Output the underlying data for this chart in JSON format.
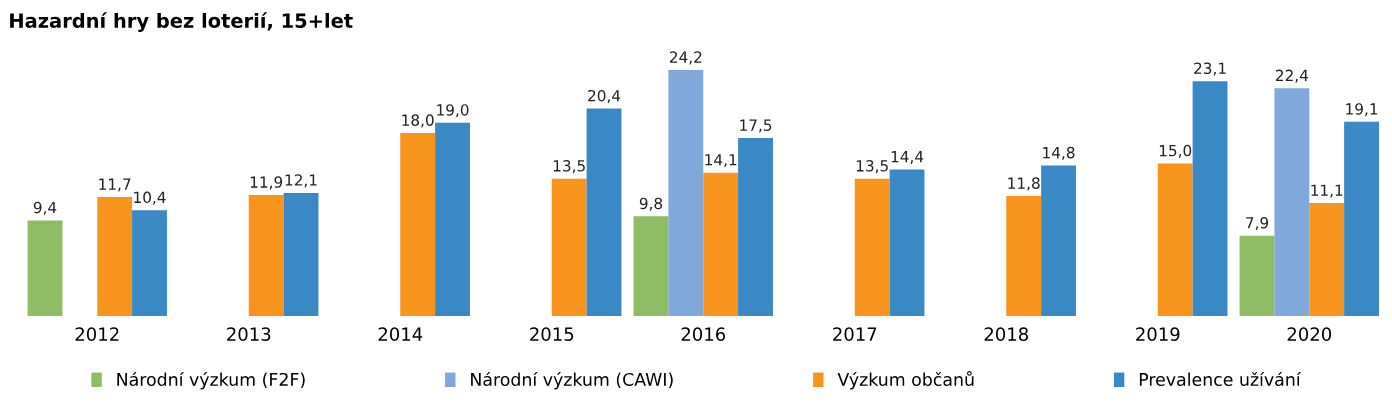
{
  "chart_data": {
    "type": "bar",
    "title": "Hazardní hry bez loterií, 15+let",
    "categories": [
      "2012",
      "2013",
      "2014",
      "2015",
      "2016",
      "2017",
      "2018",
      "2019",
      "2020"
    ],
    "series": [
      {
        "name": "Národní výzkum (F2F)",
        "color": "#8fbd66",
        "values": [
          9.4,
          null,
          null,
          null,
          9.8,
          null,
          null,
          null,
          7.9
        ],
        "value_labels": [
          "9,4",
          null,
          null,
          null,
          "9,8",
          null,
          null,
          null,
          "7,9"
        ]
      },
      {
        "name": "Národní výzkum (CAWI)",
        "color": "#80a8da",
        "values": [
          null,
          null,
          null,
          null,
          24.2,
          null,
          null,
          null,
          22.4
        ],
        "value_labels": [
          null,
          null,
          null,
          null,
          "24,2",
          null,
          null,
          null,
          "22,4"
        ]
      },
      {
        "name": "Výzkum občanů",
        "color": "#f7941e",
        "values": [
          11.7,
          11.9,
          18.0,
          13.5,
          14.1,
          13.5,
          11.8,
          15.0,
          11.1
        ],
        "value_labels": [
          "11,7",
          "11,9",
          "18,0",
          "13,5",
          "14,1",
          "13,5",
          "11,8",
          "15,0",
          "11,1"
        ]
      },
      {
        "name": "Prevalence užívání",
        "color": "#3a88c4",
        "values": [
          10.4,
          12.1,
          19.0,
          20.4,
          17.5,
          14.4,
          14.8,
          23.1,
          19.1
        ],
        "value_labels": [
          "10,4",
          "12,1",
          "19,0",
          "20,4",
          "17,5",
          "14,4",
          "14,8",
          "23,1",
          "19,1"
        ]
      }
    ],
    "legend": "bottom",
    "grid": false
  }
}
